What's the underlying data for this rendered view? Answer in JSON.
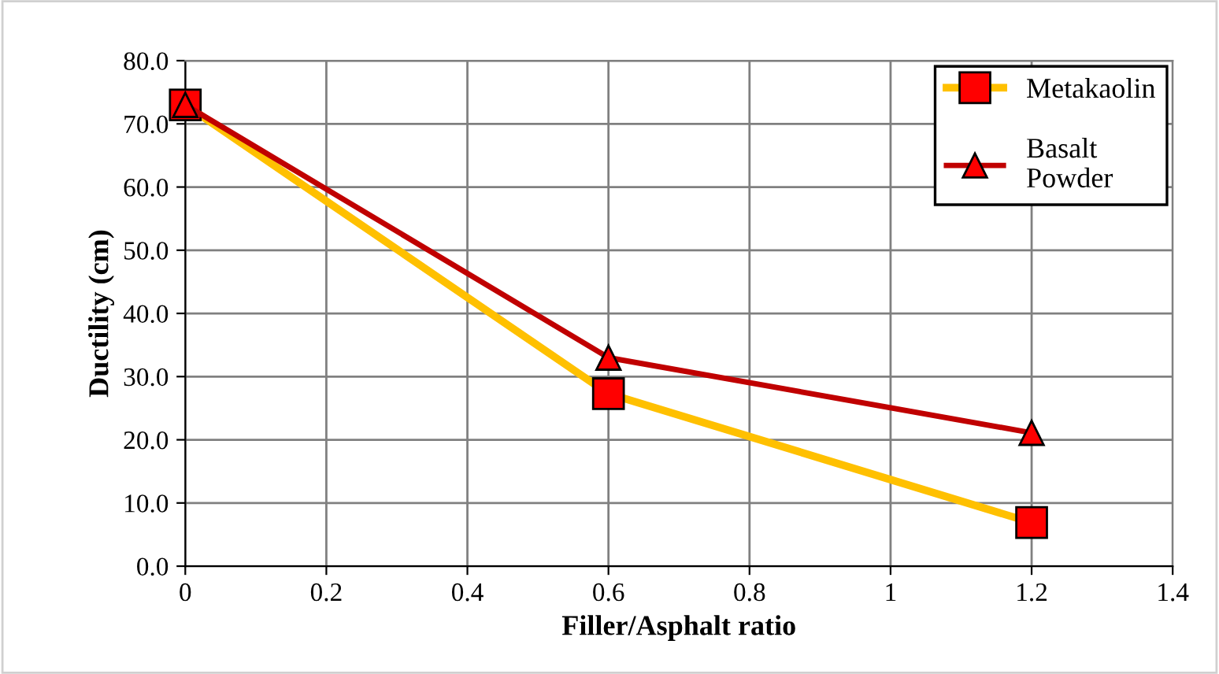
{
  "chart_data": {
    "type": "line",
    "xlabel": "Filler/Asphalt ratio",
    "ylabel": "Ductility (cm)",
    "x": [
      0,
      0.6,
      1.2
    ],
    "series": [
      {
        "name": "Metakaolin",
        "color": "#ffc000",
        "marker": "square",
        "values": [
          73.0,
          27.3,
          6.9
        ]
      },
      {
        "name": "Basalt\nPowder",
        "color": "#c00000",
        "marker": "triangle",
        "values": [
          73.0,
          33.0,
          21.1
        ]
      }
    ],
    "xlim": [
      0,
      1.4
    ],
    "xticks": [
      {
        "value": 0,
        "label": "0"
      },
      0.2,
      0.4,
      0.6,
      0.8,
      {
        "value": 1,
        "label": "1"
      },
      1.2,
      1.4
    ],
    "ylim": [
      0,
      80
    ],
    "yticks": [
      {
        "value": 0,
        "label": "0.0"
      },
      {
        "value": 10,
        "label": "10.0"
      },
      {
        "value": 20,
        "label": "20.0"
      },
      {
        "value": 30,
        "label": "30.0"
      },
      {
        "value": 40,
        "label": "40.0"
      },
      {
        "value": 50,
        "label": "50.0"
      },
      {
        "value": 60,
        "label": "60.0"
      },
      {
        "value": 70,
        "label": "70.0"
      },
      {
        "value": 80,
        "label": "80.0"
      }
    ],
    "grid": true,
    "legend": "top right",
    "line_style": "solid"
  }
}
